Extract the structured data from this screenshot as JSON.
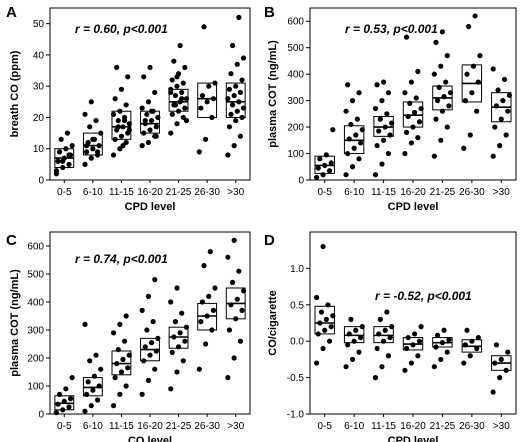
{
  "chart_data": [
    {
      "type": "scatter",
      "panel_label": "A",
      "annotation": "r = 0.60, p<0.001",
      "xlabel": "CPD level",
      "ylabel": "breath CO (ppm)",
      "ylim": [
        0,
        55
      ],
      "yticks": [
        0,
        10,
        20,
        30,
        40,
        50
      ],
      "categories": [
        "0-5",
        "6-10",
        "11-15",
        "16-20",
        "21-25",
        "26-30",
        ">30"
      ],
      "boxes": [
        {
          "low": 4,
          "mid": 7,
          "high": 10
        },
        {
          "low": 8,
          "mid": 11,
          "high": 15
        },
        {
          "low": 13,
          "mid": 17,
          "high": 22
        },
        {
          "low": 15,
          "mid": 18,
          "high": 22
        },
        {
          "low": 22,
          "mid": 25,
          "high": 29
        },
        {
          "low": 20,
          "mid": 26,
          "high": 31
        },
        {
          "low": 20,
          "mid": 25,
          "high": 31
        }
      ],
      "points": [
        [
          3,
          4,
          5,
          6,
          7,
          8,
          9,
          10,
          11,
          13,
          15,
          2,
          6,
          8
        ],
        [
          5,
          7,
          8,
          9,
          10,
          11,
          12,
          13,
          15,
          17,
          19,
          21,
          25,
          9,
          11,
          13
        ],
        [
          8,
          10,
          12,
          13,
          14,
          15,
          16,
          17,
          18,
          19,
          20,
          21,
          22,
          24,
          26,
          29,
          33,
          36,
          11,
          16,
          17,
          19
        ],
        [
          11,
          12,
          14,
          15,
          16,
          17,
          18,
          19,
          20,
          21,
          22,
          23,
          25,
          28,
          33,
          36,
          14,
          19,
          22
        ],
        [
          15,
          18,
          20,
          21,
          22,
          23,
          24,
          25,
          26,
          27,
          28,
          29,
          30,
          31,
          32,
          34,
          36,
          38,
          43,
          19,
          24,
          26,
          28,
          33
        ],
        [
          9,
          13,
          20,
          23,
          25,
          26,
          27,
          30,
          31,
          49
        ],
        [
          8,
          11,
          14,
          17,
          19,
          20,
          21,
          22,
          23,
          24,
          25,
          26,
          27,
          28,
          29,
          30,
          32,
          34,
          37,
          39,
          43,
          52
        ]
      ]
    },
    {
      "type": "scatter",
      "panel_label": "B",
      "annotation": "r = 0.53, p<0.001",
      "xlabel": "CPD level",
      "ylabel": "plasma COT (ng/mL)",
      "ylim": [
        0,
        650
      ],
      "yticks": [
        0,
        100,
        200,
        300,
        400,
        500,
        600
      ],
      "categories": [
        "0-5",
        "6-10",
        "11-15",
        "16-20",
        "21-25",
        "26-30",
        ">30"
      ],
      "boxes": [
        {
          "low": 25,
          "mid": 55,
          "high": 90
        },
        {
          "low": 100,
          "mid": 150,
          "high": 205
        },
        {
          "low": 165,
          "mid": 200,
          "high": 240
        },
        {
          "low": 200,
          "mid": 245,
          "high": 295
        },
        {
          "low": 265,
          "mid": 310,
          "high": 355
        },
        {
          "low": 295,
          "mid": 365,
          "high": 435
        },
        {
          "low": 220,
          "mid": 275,
          "high": 330
        }
      ],
      "points": [
        [
          10,
          20,
          35,
          45,
          55,
          65,
          80,
          95,
          190
        ],
        [
          20,
          50,
          80,
          100,
          120,
          140,
          155,
          170,
          190,
          210,
          230,
          260,
          300,
          330,
          360
        ],
        [
          20,
          60,
          100,
          130,
          150,
          170,
          185,
          200,
          215,
          230,
          250,
          270,
          300,
          330,
          360,
          370
        ],
        [
          100,
          140,
          160,
          180,
          200,
          220,
          240,
          255,
          270,
          290,
          310,
          330,
          370,
          410,
          540
        ],
        [
          90,
          150,
          200,
          230,
          260,
          280,
          300,
          315,
          330,
          350,
          370,
          400,
          430,
          470,
          520,
          560
        ],
        [
          120,
          170,
          260,
          300,
          330,
          370,
          400,
          430,
          470,
          580,
          620
        ],
        [
          90,
          130,
          170,
          200,
          230,
          260,
          280,
          300,
          320,
          340,
          380,
          420
        ]
      ]
    },
    {
      "type": "scatter",
      "panel_label": "C",
      "annotation": "r = 0.74, p<0.001",
      "xlabel": "CO level",
      "ylabel": "plasma COT (ng/mL)",
      "ylim": [
        0,
        650
      ],
      "yticks": [
        0,
        100,
        200,
        300,
        400,
        500,
        600
      ],
      "categories": [
        "0-5",
        "6-10",
        "11-15",
        "16-20",
        "21-25",
        "26-30",
        ">30"
      ],
      "boxes": [
        {
          "low": 15,
          "mid": 38,
          "high": 65
        },
        {
          "low": 65,
          "mid": 95,
          "high": 130
        },
        {
          "low": 140,
          "mid": 180,
          "high": 225
        },
        {
          "low": 190,
          "mid": 230,
          "high": 270
        },
        {
          "low": 235,
          "mid": 275,
          "high": 310
        },
        {
          "low": 300,
          "mid": 350,
          "high": 395
        },
        {
          "low": 340,
          "mid": 395,
          "high": 450
        }
      ],
      "points": [
        [
          5,
          15,
          25,
          35,
          45,
          55,
          70,
          90,
          130
        ],
        [
          10,
          30,
          50,
          70,
          85,
          100,
          115,
          135,
          160,
          190,
          210,
          320
        ],
        [
          30,
          70,
          100,
          130,
          150,
          165,
          180,
          195,
          210,
          230,
          260,
          290,
          320,
          350
        ],
        [
          70,
          120,
          160,
          190,
          210,
          225,
          240,
          255,
          270,
          300,
          330,
          370,
          420,
          480
        ],
        [
          90,
          150,
          190,
          220,
          240,
          260,
          275,
          290,
          310,
          330,
          360,
          400,
          450
        ],
        [
          160,
          250,
          300,
          330,
          350,
          370,
          400,
          420,
          450,
          530,
          580
        ],
        [
          130,
          200,
          260,
          300,
          340,
          370,
          390,
          410,
          440,
          470,
          510,
          560,
          620
        ]
      ]
    },
    {
      "type": "scatter",
      "panel_label": "D",
      "annotation": "r = -0.52, p<0.001",
      "xlabel": "CPD level",
      "ylabel": "CO/cigarette",
      "ylim": [
        -1.0,
        1.5
      ],
      "yticks": [
        "-1.0",
        "-0.5",
        "0.0",
        "0.5",
        "1.0"
      ],
      "categories": [
        "0-5",
        "6-10",
        "11-15",
        "16-20",
        "21-25",
        "26-30",
        ">30"
      ],
      "boxes": [
        {
          "low": 0.1,
          "mid": 0.25,
          "high": 0.48
        },
        {
          "low": -0.02,
          "mid": 0.08,
          "high": 0.2
        },
        {
          "low": -0.02,
          "mid": 0.08,
          "high": 0.2
        },
        {
          "low": -0.12,
          "mid": -0.04,
          "high": 0.05
        },
        {
          "low": -0.08,
          "mid": -0.02,
          "high": 0.05
        },
        {
          "low": -0.15,
          "mid": -0.07,
          "high": 0.02
        },
        {
          "low": -0.4,
          "mid": -0.3,
          "high": -0.2
        }
      ],
      "points": [
        [
          -0.3,
          -0.1,
          0.0,
          0.1,
          0.15,
          0.2,
          0.25,
          0.3,
          0.35,
          0.4,
          0.5,
          0.6,
          1.3
        ],
        [
          -0.35,
          -0.25,
          -0.15,
          -0.05,
          0.0,
          0.05,
          0.1,
          0.15,
          0.2,
          0.3
        ],
        [
          -0.5,
          -0.35,
          -0.2,
          -0.1,
          0.0,
          0.05,
          0.1,
          0.15,
          0.2,
          0.3,
          0.4
        ],
        [
          -0.4,
          -0.3,
          -0.2,
          -0.1,
          -0.05,
          0.0,
          0.05,
          0.1,
          0.2
        ],
        [
          -0.35,
          -0.25,
          -0.15,
          -0.08,
          -0.02,
          0.02,
          0.08,
          0.15
        ],
        [
          -0.3,
          -0.2,
          -0.1,
          -0.05,
          0.0,
          0.05,
          0.15
        ],
        [
          -0.7,
          -0.5,
          -0.4,
          -0.3,
          -0.25,
          -0.15,
          -0.05
        ]
      ]
    }
  ]
}
